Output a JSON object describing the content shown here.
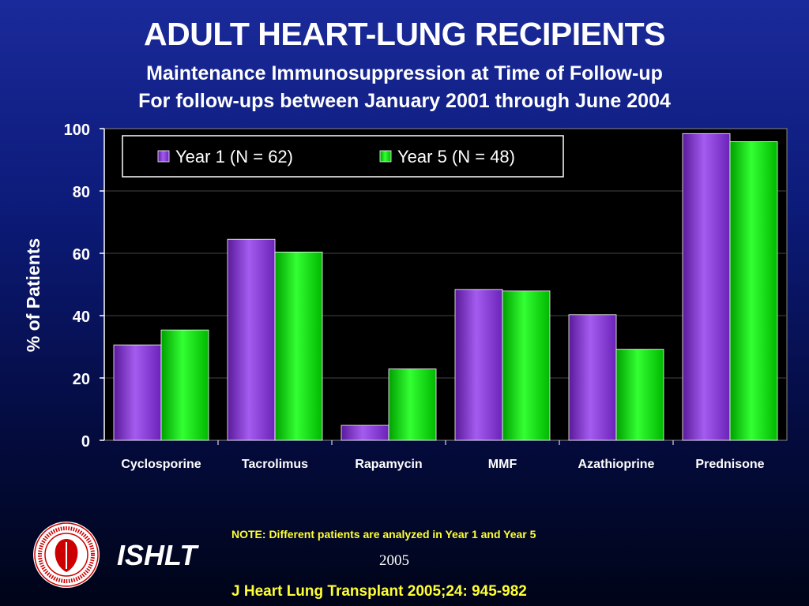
{
  "header": {
    "title": "ADULT HEART-LUNG RECIPIENTS",
    "subtitle_1": "Maintenance Immunosuppression at Time of Follow-up",
    "subtitle_2": "For follow-ups between January 2001 through June 2004"
  },
  "chart_data": {
    "type": "bar",
    "categories": [
      "Cyclosporine",
      "Tacrolimus",
      "Rapamycin",
      "MMF",
      "Azathioprine",
      "Prednisone"
    ],
    "series": [
      {
        "name": "Year 1 (N = 62)",
        "values": [
          30.6,
          64.5,
          4.8,
          48.4,
          40.3,
          98.4
        ],
        "color": "#8a2be2"
      },
      {
        "name": "Year 5 (N = 48)",
        "values": [
          35.4,
          60.4,
          22.9,
          47.9,
          29.2,
          95.8
        ],
        "color": "#00dd00"
      }
    ],
    "ylabel": "% of Patients",
    "xlabel": "",
    "ylim": [
      0,
      100
    ],
    "yticks": [
      0,
      20,
      40,
      60,
      80,
      100
    ],
    "grid": true,
    "legend_position": "top-left inside plot",
    "plot_background": "#000000"
  },
  "footer": {
    "note": "NOTE: Different patients are analyzed in Year 1 and Year 5",
    "year": "2005",
    "citation": "J Heart Lung Transplant 2005;24: 945-982",
    "org": "ISHLT",
    "logo_text": "INTERNATIONAL SOCIETY FOR HEART & LUNG TRANSPLANTATION"
  }
}
